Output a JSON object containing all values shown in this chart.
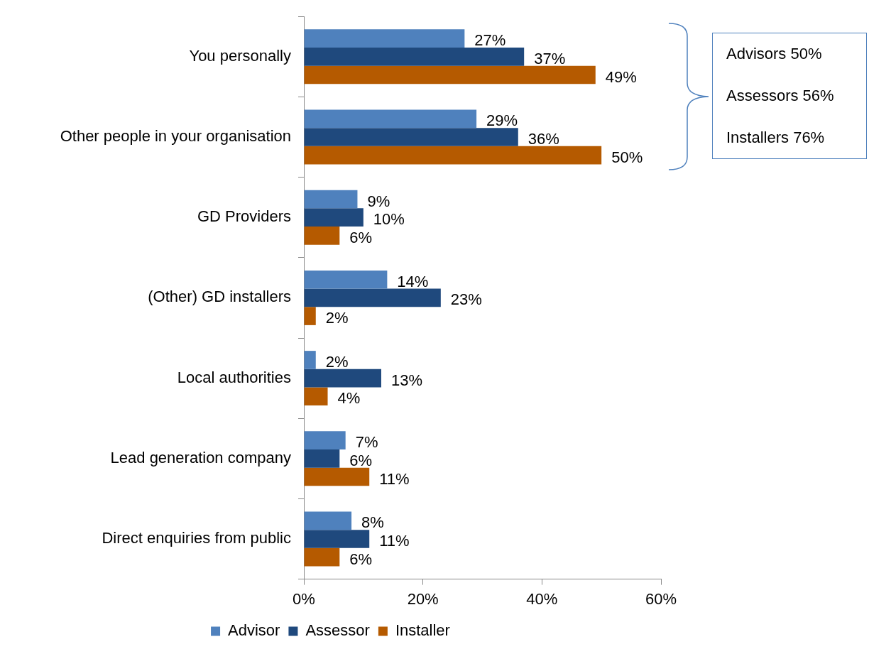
{
  "chart_data": {
    "type": "bar",
    "orientation": "horizontal",
    "categories": [
      "You personally",
      "Other people in your organisation",
      "GD Providers",
      "(Other) GD installers",
      "Local authorities",
      "Lead generation company",
      "Direct enquiries from public"
    ],
    "series": [
      {
        "name": "Advisor",
        "color": "#4f81bd",
        "values": [
          27,
          29,
          9,
          14,
          2,
          7,
          8
        ],
        "value_labels": [
          "27%",
          "29%",
          "9%",
          "14%",
          "2%",
          "7%",
          "8%"
        ]
      },
      {
        "name": "Assessor",
        "color": "#1f497d",
        "values": [
          37,
          36,
          10,
          23,
          13,
          6,
          11
        ],
        "value_labels": [
          "37%",
          "36%",
          "10%",
          "23%",
          "13%",
          "6%",
          "11%"
        ]
      },
      {
        "name": "Installer",
        "color": "#b55a00",
        "values": [
          49,
          50,
          6,
          2,
          4,
          11,
          6
        ],
        "value_labels": [
          "49%",
          "50%",
          "6%",
          "2%",
          "4%",
          "11%",
          "6%"
        ]
      }
    ],
    "xlim": [
      0,
      60
    ],
    "xticks": [
      {
        "value": 0,
        "label": "0%"
      },
      {
        "value": 20,
        "label": "20%"
      },
      {
        "value": 40,
        "label": "40%"
      },
      {
        "value": 60,
        "label": "60%"
      }
    ],
    "grid": false,
    "legend": "bottom",
    "annotations": [
      "Advisors 50%",
      "Assessors 56%",
      "Installers 76%"
    ]
  }
}
